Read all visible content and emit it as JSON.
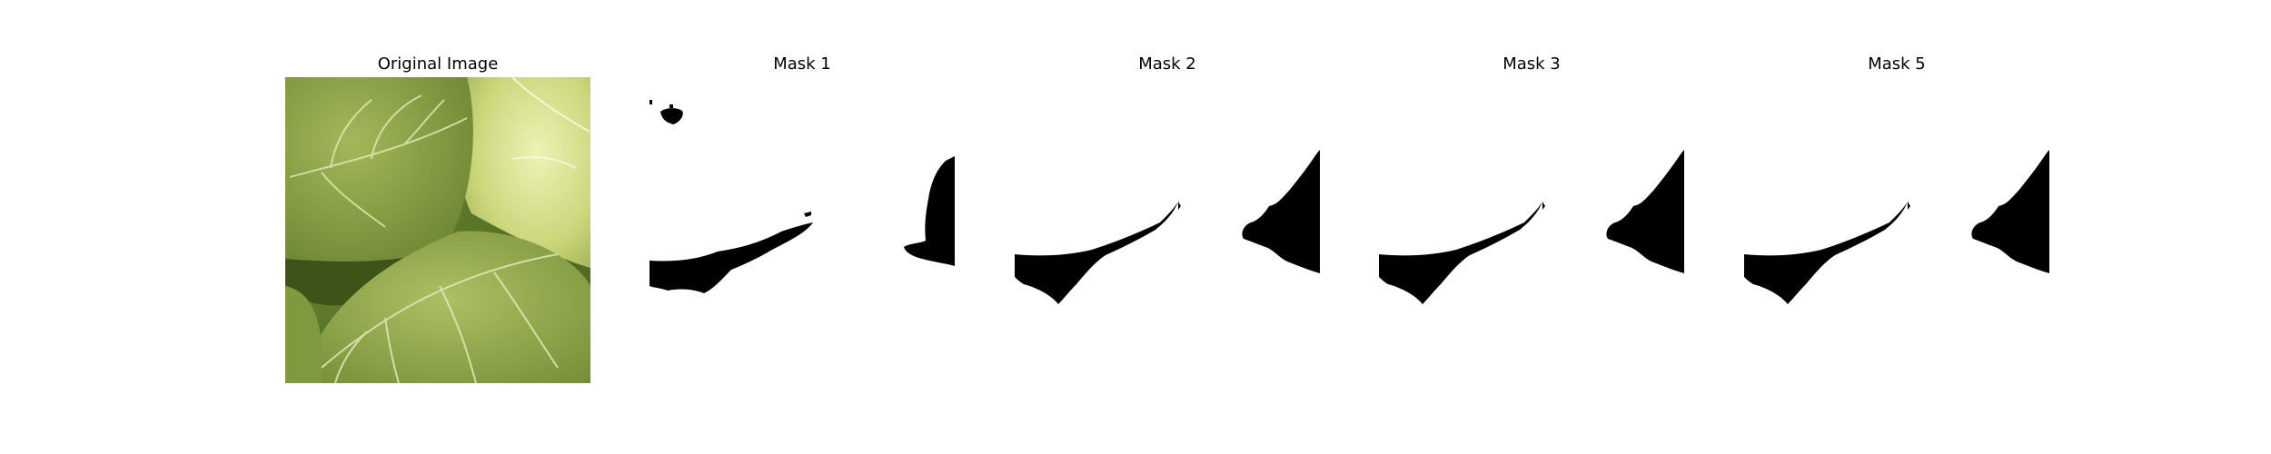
{
  "panels": [
    {
      "id": "original",
      "title": "Original Image",
      "kind": "photo",
      "subject": "leaf-photo"
    },
    {
      "id": "mask1",
      "title": "Mask 1",
      "kind": "mask"
    },
    {
      "id": "mask2",
      "title": "Mask 2",
      "kind": "mask"
    },
    {
      "id": "mask3",
      "title": "Mask 3",
      "kind": "mask"
    },
    {
      "id": "mask5",
      "title": "Mask 5",
      "kind": "mask"
    }
  ],
  "colors": {
    "background": "#ffffff",
    "mask_foreground": "#ffffff",
    "mask_shape": "#000000",
    "leaf_dark": "#5d7a2a",
    "leaf_mid": "#8aa646",
    "leaf_light": "#c7d47a",
    "leaf_bright": "#e6ecaa"
  }
}
